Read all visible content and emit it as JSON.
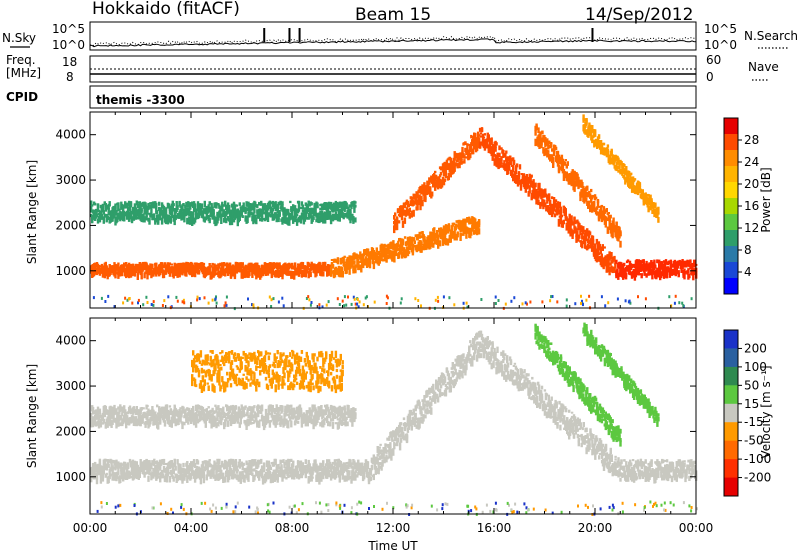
{
  "header": {
    "station": "Hokkaido (fitACF)",
    "beam": "Beam 15",
    "date": "14/Sep/2012"
  },
  "panels_top": {
    "nsky_label": "N.Sky",
    "nsearch_label": "N.Search",
    "freq_label_1": "Freq.",
    "freq_label_2": "[MHz]",
    "nave_label": "Nave",
    "cpid_label": "CPID",
    "cpid_value": "themis -3300",
    "nsky_ticks": [
      "10^5",
      "10^0"
    ],
    "nsky_right_ticks": [
      "10^5",
      "10^0"
    ],
    "freq_ticks": [
      "18",
      "8"
    ],
    "nave_ticks": [
      "60",
      "0"
    ]
  },
  "chart_data": [
    {
      "type": "heatmap",
      "name": "power",
      "ylabel": "Slant Range [km]",
      "xlabel": "",
      "x_ticks": [
        "00:00",
        "04:00",
        "08:00",
        "12:00",
        "16:00",
        "20:00",
        "00:00"
      ],
      "x_range_hours": [
        0,
        24
      ],
      "y_ticks": [
        1000,
        2000,
        3000,
        4000
      ],
      "y_range_km": [
        180,
        4500
      ],
      "colorbar": {
        "label": "Power [dB]",
        "ticks": [
          "28",
          "24",
          "20",
          "16",
          "12",
          "8",
          "4"
        ],
        "colors": [
          "#e60000",
          "#ff4b00",
          "#ff8c00",
          "#ffb400",
          "#ffd700",
          "#a8d800",
          "#5cc840",
          "#2f9e6a",
          "#2a7aa8",
          "#1a48d6",
          "#0000ff"
        ]
      },
      "bands": [
        {
          "y0": 1080,
          "y1": 1080,
          "dy": 120,
          "x0": 0,
          "x1": 9.5,
          "color": "#ff5a00"
        },
        {
          "y0": 1080,
          "y1": 2100,
          "dy": 180,
          "x0": 9.5,
          "x1": 15.4,
          "color": "#ff7a00"
        },
        {
          "y0": 2100,
          "y1": 4000,
          "dy": 200,
          "x0": 12,
          "x1": 15.4,
          "color": "#ff5a00"
        },
        {
          "y0": 4000,
          "y1": 1100,
          "dy": 220,
          "x0": 15.4,
          "x1": 20.8,
          "color": "#ff4b00"
        },
        {
          "y0": 1100,
          "y1": 1100,
          "dy": 160,
          "x0": 20.8,
          "x1": 24,
          "color": "#ff2a00"
        },
        {
          "y0": 2350,
          "y1": 2350,
          "dy": 200,
          "x0": 0,
          "x1": 10.5,
          "color": "#2f9e6a"
        },
        {
          "y0": 4100,
          "y1": 1800,
          "dy": 200,
          "x0": 17.6,
          "x1": 21.0,
          "color": "#ff6a00"
        },
        {
          "y0": 4300,
          "y1": 2300,
          "dy": 150,
          "x0": 19.5,
          "x1": 22.5,
          "color": "#ff9a00"
        }
      ]
    },
    {
      "type": "heatmap",
      "name": "velocity",
      "ylabel": "Slant Range [km]",
      "xlabel": "Time UT",
      "x_ticks": [
        "00:00",
        "04:00",
        "08:00",
        "12:00",
        "16:00",
        "20:00",
        "00:00"
      ],
      "x_range_hours": [
        0,
        24
      ],
      "y_ticks": [
        1000,
        2000,
        3000,
        4000
      ],
      "y_range_km": [
        180,
        4500
      ],
      "colorbar": {
        "label": "Velocity [m s⁻¹]",
        "ticks": [
          "200",
          "100",
          "50",
          "15",
          "-15",
          "-50",
          "-100",
          "-200"
        ],
        "colors": [
          "#1a32c8",
          "#2a60a0",
          "#2f8a50",
          "#5cc840",
          "#c8c8c0",
          "#ff9a00",
          "#ff6a00",
          "#ff3000",
          "#e60000"
        ]
      },
      "bands": [
        {
          "y0": 1200,
          "y1": 1200,
          "dy": 200,
          "x0": 0,
          "x1": 11,
          "color": "#c8c8c0"
        },
        {
          "y0": 1200,
          "y1": 4000,
          "dy": 260,
          "x0": 11,
          "x1": 15.4,
          "color": "#c8c8c0"
        },
        {
          "y0": 4000,
          "y1": 1200,
          "dy": 260,
          "x0": 15.4,
          "x1": 21,
          "color": "#c8c8c0"
        },
        {
          "y0": 1200,
          "y1": 1200,
          "dy": 200,
          "x0": 21,
          "x1": 24,
          "color": "#c8c8c0"
        },
        {
          "y0": 2400,
          "y1": 2400,
          "dy": 200,
          "x0": 0,
          "x1": 10.5,
          "color": "#c8c8c0"
        },
        {
          "y0": 3400,
          "y1": 3400,
          "dy": 400,
          "x0": 4,
          "x1": 10,
          "color": "#ff9a00"
        },
        {
          "y0": 4200,
          "y1": 1900,
          "dy": 180,
          "x0": 17.6,
          "x1": 21.0,
          "color": "#5cc840"
        },
        {
          "y0": 4300,
          "y1": 2300,
          "dy": 150,
          "x0": 19.5,
          "x1": 22.5,
          "color": "#5cc840"
        }
      ]
    }
  ]
}
